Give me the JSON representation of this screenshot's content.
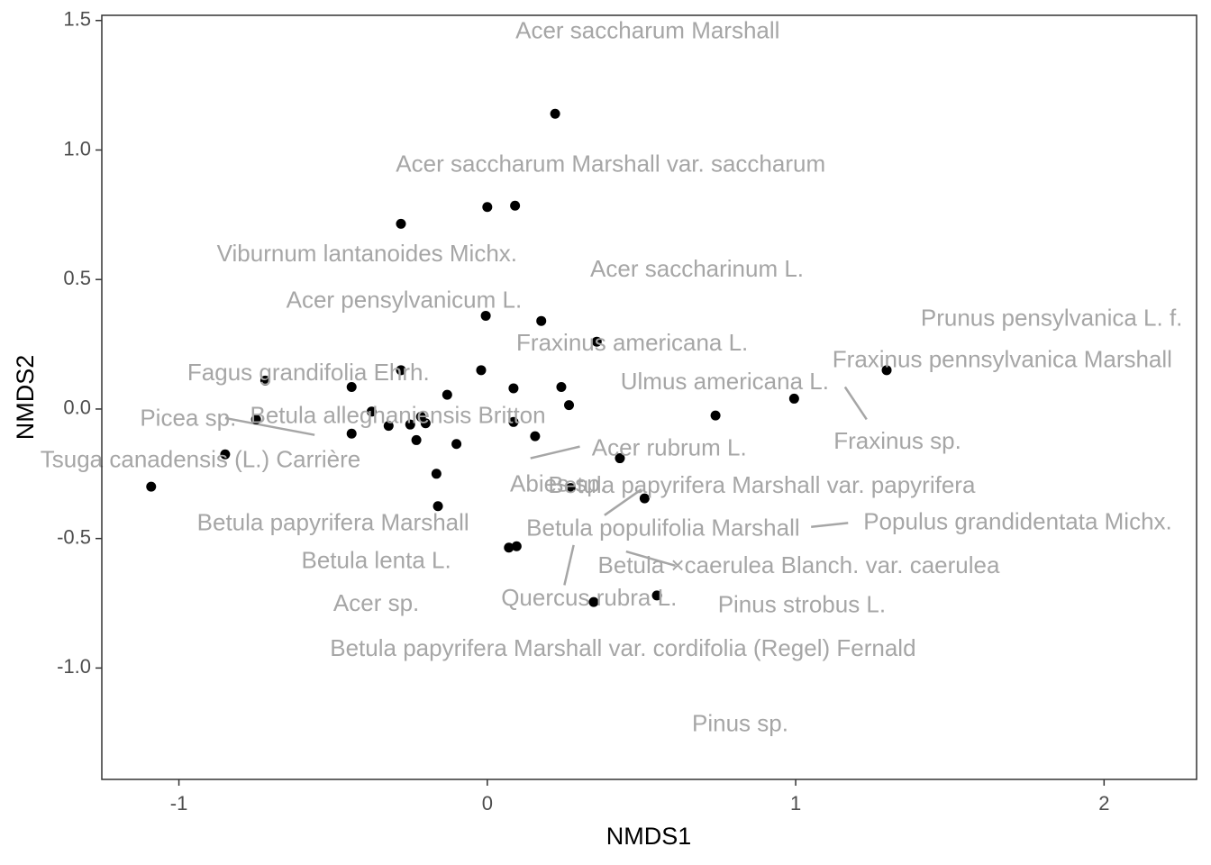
{
  "chart_data": {
    "type": "scatter",
    "title": "",
    "xlabel": "NMDS1",
    "ylabel": "NMDS2",
    "xlim": [
      -1.25,
      2.3
    ],
    "ylim": [
      -1.43,
      1.52
    ],
    "x_ticks": [
      -1,
      0,
      1,
      2
    ],
    "x_tick_labels": [
      "-1",
      "0",
      "1",
      "2"
    ],
    "y_ticks": [
      -1.0,
      -0.5,
      0.0,
      0.5,
      1.0,
      1.5
    ],
    "y_tick_labels": [
      "-1.0",
      "-0.5",
      "0.0",
      "0.5",
      "1.0",
      "1.5"
    ],
    "grid": false,
    "legend": "none",
    "point_color": "#000000",
    "label_color": "#a6a6a6",
    "leader_color": "#a6a6a6",
    "points": [
      {
        "x": 0.22,
        "y": 1.14
      },
      {
        "x": 0.0,
        "y": 0.78
      },
      {
        "x": 0.09,
        "y": 0.785
      },
      {
        "x": -0.28,
        "y": 0.715
      },
      {
        "x": -0.005,
        "y": 0.36
      },
      {
        "x": 0.175,
        "y": 0.34
      },
      {
        "x": 0.355,
        "y": 0.26
      },
      {
        "x": -0.72,
        "y": 0.11
      },
      {
        "x": -0.28,
        "y": 0.15
      },
      {
        "x": -0.02,
        "y": 0.15
      },
      {
        "x": -0.44,
        "y": 0.085
      },
      {
        "x": -0.13,
        "y": 0.055
      },
      {
        "x": 0.085,
        "y": 0.08
      },
      {
        "x": 0.24,
        "y": 0.085
      },
      {
        "x": 0.265,
        "y": 0.015
      },
      {
        "x": -0.375,
        "y": -0.01
      },
      {
        "x": -0.75,
        "y": -0.04
      },
      {
        "x": -0.25,
        "y": -0.06
      },
      {
        "x": -0.32,
        "y": -0.065
      },
      {
        "x": -0.2,
        "y": -0.055
      },
      {
        "x": -0.215,
        "y": -0.03
      },
      {
        "x": 0.085,
        "y": -0.05
      },
      {
        "x": 0.74,
        "y": -0.025
      },
      {
        "x": 0.995,
        "y": 0.04
      },
      {
        "x": 1.295,
        "y": 0.15
      },
      {
        "x": -0.44,
        "y": -0.095
      },
      {
        "x": -0.23,
        "y": -0.12
      },
      {
        "x": -0.1,
        "y": -0.135
      },
      {
        "x": 0.155,
        "y": -0.105
      },
      {
        "x": -0.85,
        "y": -0.175
      },
      {
        "x": 0.43,
        "y": -0.19
      },
      {
        "x": -1.09,
        "y": -0.3
      },
      {
        "x": -0.165,
        "y": -0.25
      },
      {
        "x": 0.27,
        "y": -0.305
      },
      {
        "x": 0.51,
        "y": -0.345
      },
      {
        "x": -0.16,
        "y": -0.375
      },
      {
        "x": 0.07,
        "y": -0.535
      },
      {
        "x": 0.095,
        "y": -0.53
      },
      {
        "x": 0.345,
        "y": -0.745
      },
      {
        "x": 0.55,
        "y": -0.72
      }
    ],
    "labels": [
      {
        "text": "Acer saccharum Marshall",
        "x": 0.52,
        "y": 1.455
      },
      {
        "text": "Acer saccharum Marshall var. saccharum",
        "x": 0.4,
        "y": 0.94
      },
      {
        "text": "Viburnum lantanoides Michx.",
        "x": -0.39,
        "y": 0.595
      },
      {
        "text": "Acer saccharinum L.",
        "x": 0.68,
        "y": 0.535
      },
      {
        "text": "Acer pensylvanicum L.",
        "x": -0.27,
        "y": 0.415
      },
      {
        "text": "Prunus pensylvanica L. f.",
        "x": 1.83,
        "y": 0.345
      },
      {
        "text": "Fraxinus americana L.",
        "x": 0.47,
        "y": 0.25
      },
      {
        "text": "Fraxinus pennsylvanica Marshall",
        "x": 1.67,
        "y": 0.185
      },
      {
        "text": "Fagus grandifolia Ehrh.",
        "x": -0.58,
        "y": 0.135
      },
      {
        "text": "Ulmus americana L.",
        "x": 0.77,
        "y": 0.1
      },
      {
        "text": "Betula alleghaniensis Britton",
        "x": -0.29,
        "y": -0.03
      },
      {
        "text": "Picea sp.",
        "x": -0.97,
        "y": -0.04
      },
      {
        "text": "Fraxinus sp.",
        "x": 1.33,
        "y": -0.13
      },
      {
        "text": "Acer rubrum L.",
        "x": 0.59,
        "y": -0.155
      },
      {
        "text": "Tsuga canadensis (L.) Carrière",
        "x": -0.93,
        "y": -0.2
      },
      {
        "text": "Abies sp.",
        "x": 0.23,
        "y": -0.295
      },
      {
        "text": "Betula papyrifera Marshall var. papyrifera",
        "x": 0.89,
        "y": -0.3
      },
      {
        "text": "Betula papyrifera Marshall",
        "x": -0.5,
        "y": -0.445
      },
      {
        "text": "Populus grandidentata Michx.",
        "x": 1.72,
        "y": -0.44
      },
      {
        "text": "Betula populifolia Marshall",
        "x": 0.57,
        "y": -0.465
      },
      {
        "text": "Betula lenta L.",
        "x": -0.36,
        "y": -0.59
      },
      {
        "text": "Betula ×caerulea Blanch. var. caerulea",
        "x": 1.01,
        "y": -0.61
      },
      {
        "text": "Acer sp.",
        "x": -0.36,
        "y": -0.755
      },
      {
        "text": "Quercus rubra L.",
        "x": 0.33,
        "y": -0.735
      },
      {
        "text": "Pinus strobus L.",
        "x": 1.02,
        "y": -0.76
      },
      {
        "text": "Betula papyrifera Marshall var. cordifolia (Regel) Fernald",
        "x": 0.44,
        "y": -0.93
      },
      {
        "text": "Pinus sp.",
        "x": 0.82,
        "y": -1.22
      }
    ],
    "leader_lines": [
      {
        "from": [
          -0.85,
          -0.035
        ],
        "to": [
          -0.56,
          -0.1
        ]
      },
      {
        "from": [
          0.3,
          -0.145
        ],
        "to": [
          0.14,
          -0.19
        ]
      },
      {
        "from": [
          0.5,
          -0.31
        ],
        "to": [
          0.38,
          -0.41
        ]
      },
      {
        "from": [
          1.17,
          -0.44
        ],
        "to": [
          1.05,
          -0.455
        ]
      },
      {
        "from": [
          0.45,
          -0.55
        ],
        "to": [
          0.61,
          -0.605
        ]
      },
      {
        "from": [
          0.28,
          -0.525
        ],
        "to": [
          0.25,
          -0.68
        ]
      },
      {
        "from": [
          1.16,
          0.085
        ],
        "to": [
          1.23,
          -0.04
        ]
      }
    ]
  }
}
